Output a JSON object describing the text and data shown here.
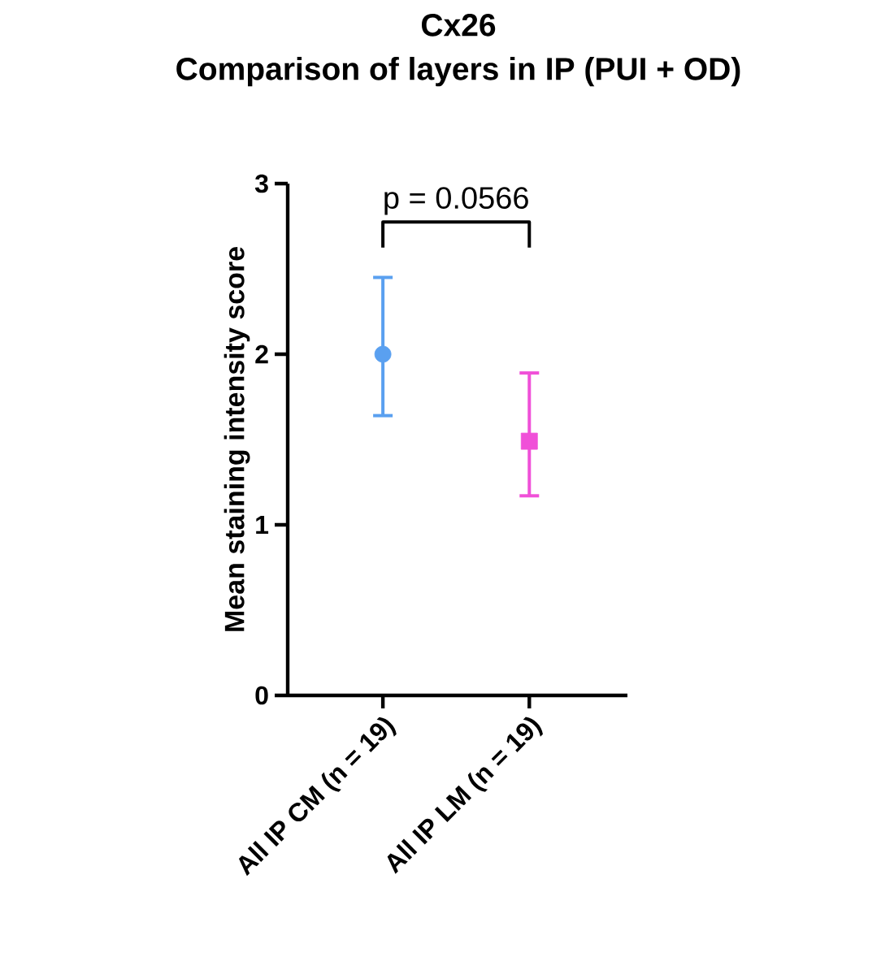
{
  "chart_data": {
    "type": "scatter",
    "title": "Cx26",
    "subtitle": "Comparison of layers in IP (PUI + OD)",
    "ylabel": "Mean staining intensity score",
    "categories": [
      "All IP CM (n = 19)",
      "All IP LM (n = 19)"
    ],
    "series": [
      {
        "values": [
          2.0,
          null
        ],
        "errors": [
          [
            1.64,
            2.45
          ],
          null
        ],
        "color": "#5aa0f0",
        "marker": "circle"
      },
      {
        "values": [
          null,
          1.49
        ],
        "errors": [
          null,
          [
            1.17,
            1.89
          ]
        ],
        "color": "#f050d8",
        "marker": "square"
      }
    ],
    "ylim": [
      0,
      3
    ],
    "yticks": [
      0,
      1,
      2,
      3
    ],
    "annotations": [
      "p = 0.0566"
    ]
  }
}
